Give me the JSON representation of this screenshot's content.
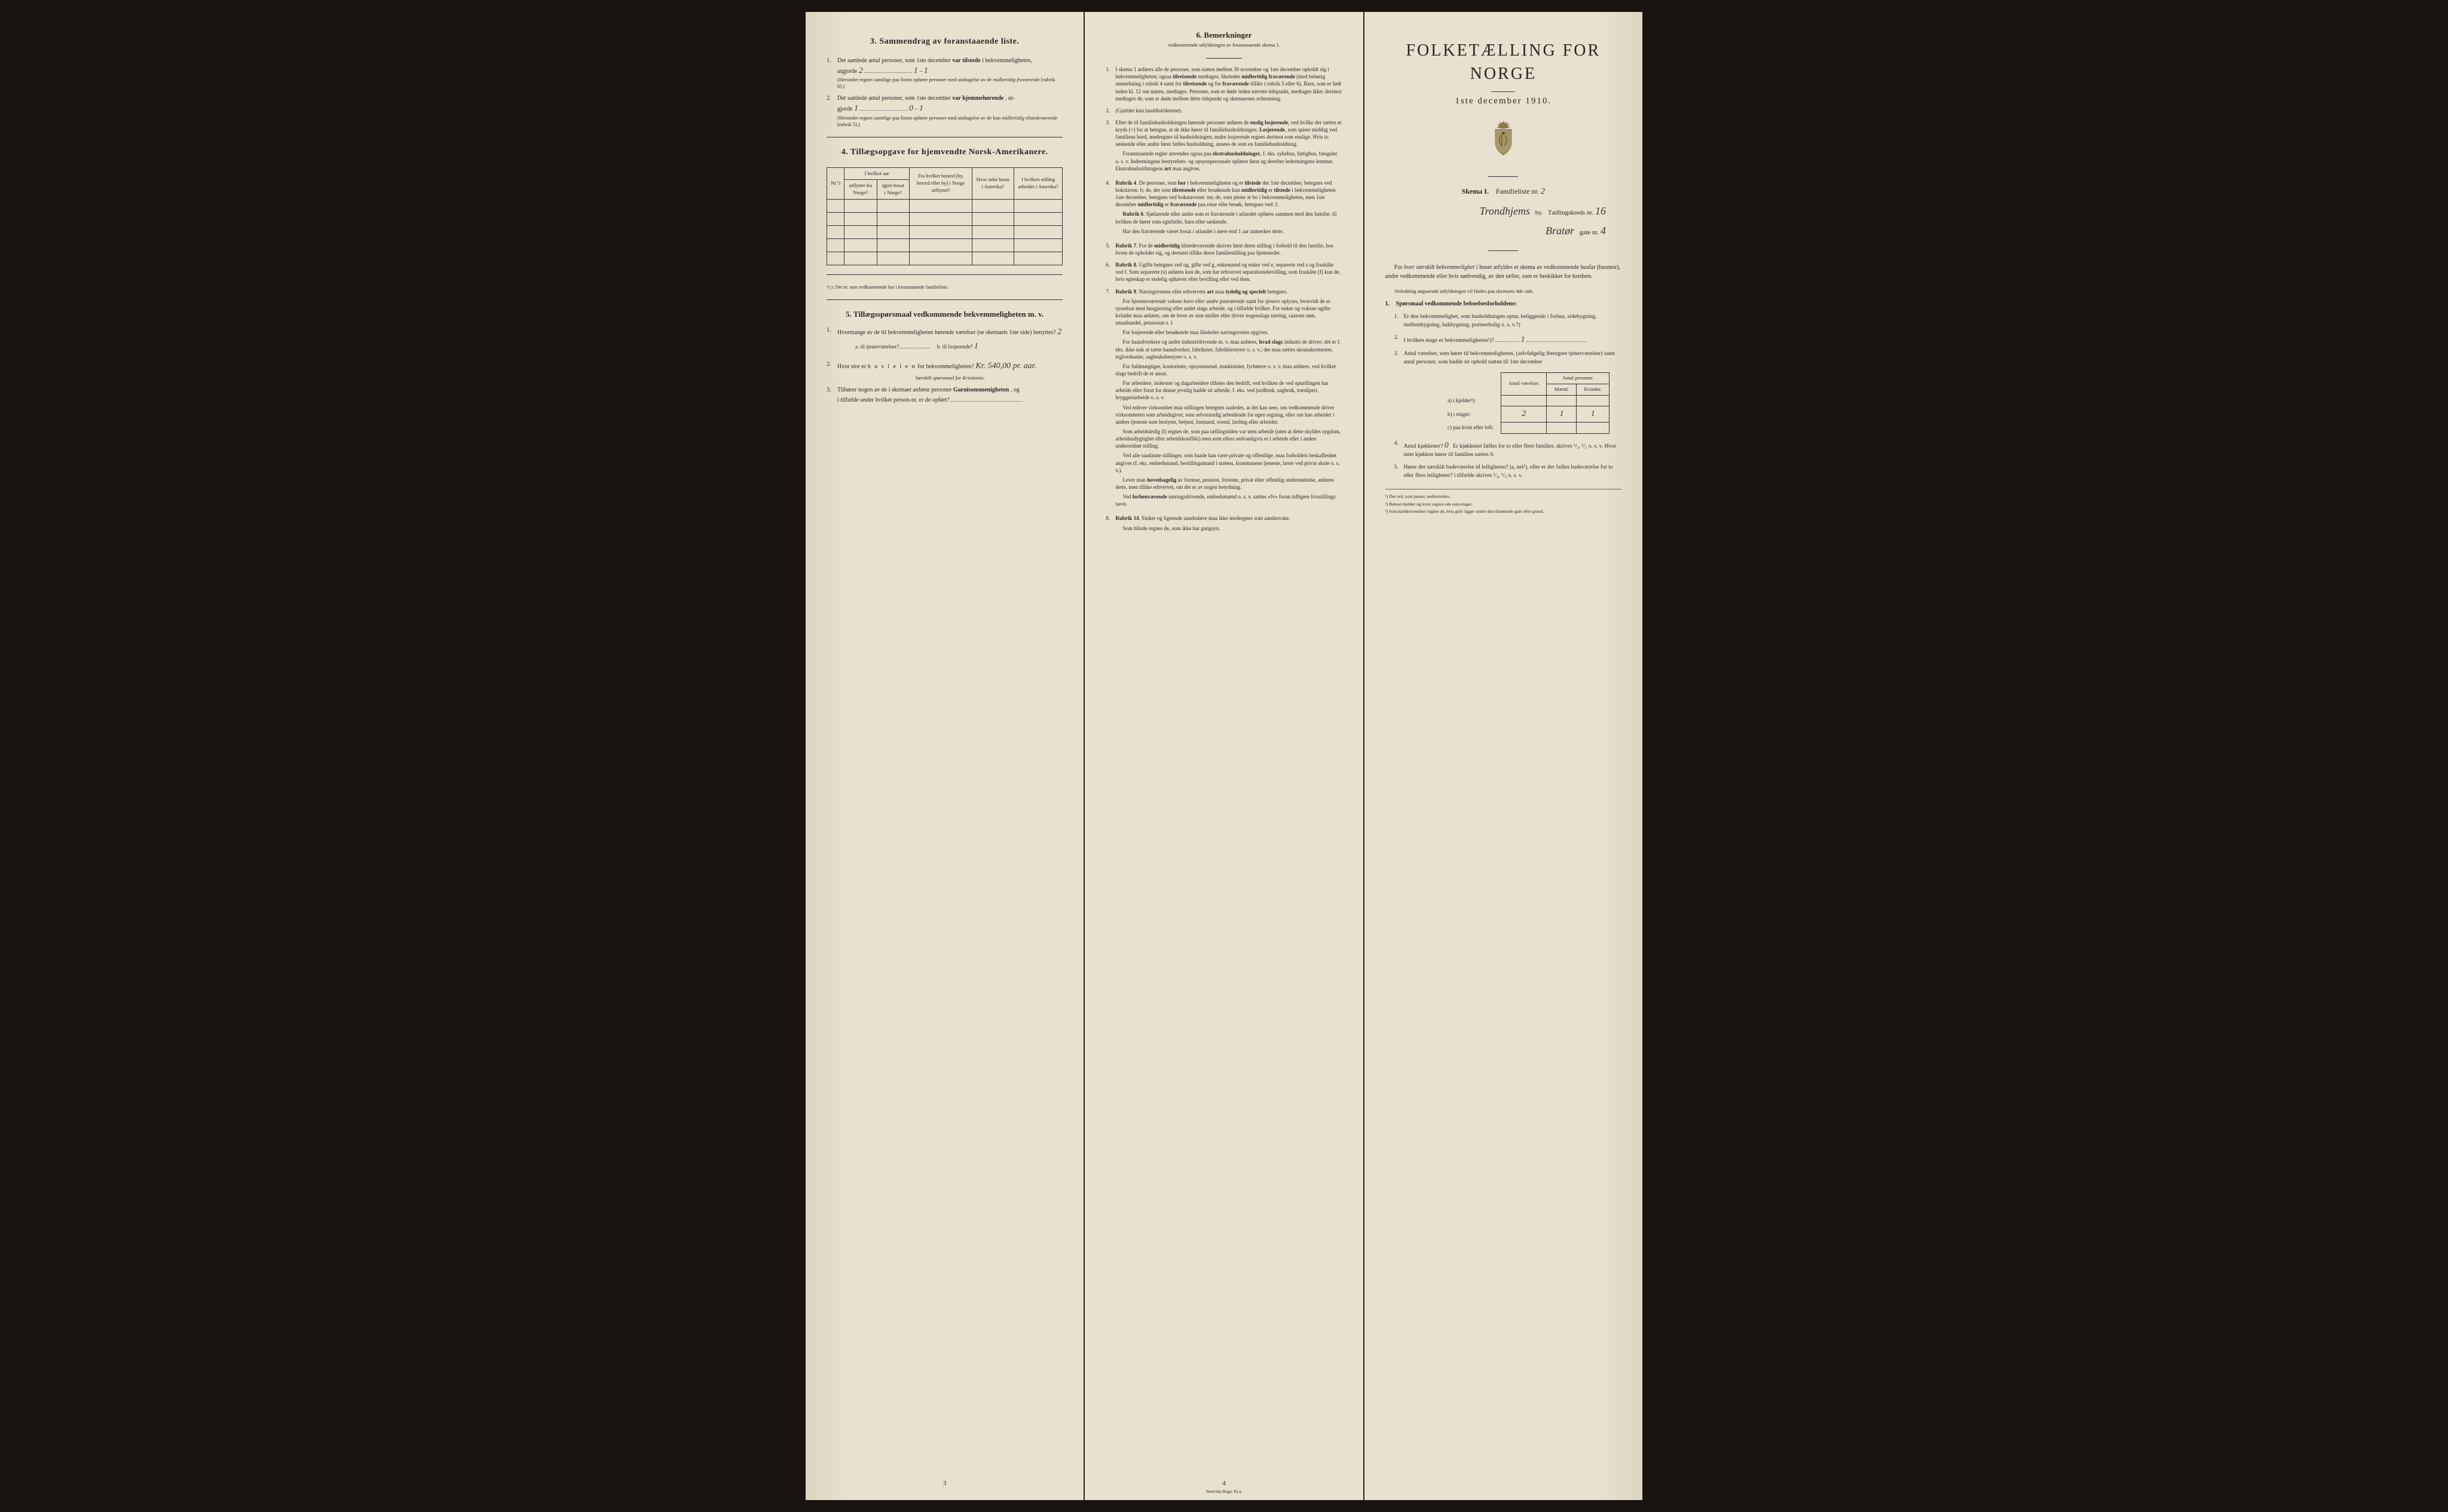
{
  "page_left": {
    "section3": {
      "title": "3.   Sammendrag av foranstaaende liste.",
      "item1": {
        "text": "Det samlede antal personer, som 1ste december",
        "bold": "var tilstede",
        "text2": "i bekvemmeligheten,",
        "line2": "utgjorde",
        "hw_total": "2",
        "hw_m": "1",
        "hw_f": "1",
        "note": "(Herunder regnes samtlige paa listen opførte personer med undtagelse av de",
        "note_italic": "midlertidig fraværende",
        "note2": "[rubrik 6].)"
      },
      "item2": {
        "text": "Det samlede antal personer, som 1ste december",
        "bold": "var hjemmehørende",
        "text2": ", ut-",
        "line2": "gjorde",
        "hw_total": "1",
        "hw_m": "0",
        "hw_f": "1",
        "note": "(Herunder regnes samtlige paa listen opførte personer med undtagelse av de kun",
        "note_italic": "midlertidig tilstedeværende",
        "note2": "[rubrik 5].)"
      }
    },
    "section4": {
      "title": "4.   Tillægsopgave for hjemvendte Norsk-Amerikanere.",
      "headers": {
        "nr": "Nr.¹)",
        "year_group": "I hvilket aar",
        "emigrated": "utflyttet fra Norge?",
        "returned": "igjen bosat i Norge?",
        "from_where": "Fra hvilket bosted (by, herred eller by) i Norge utflyttet?",
        "last_america": "Hvor sidst bosat i Amerika?",
        "occupation": "I hvilken stilling arbeidet i Amerika?"
      },
      "footnote": "¹) ɔ: Det nr. som vedkommende har i foranstaaende familieliste."
    },
    "section5": {
      "title": "5.   Tillægsspørsmaal vedkommende bekvemmeligheten m. v.",
      "item1": {
        "text": "Hvormange av de til bekvemmeligheten hørende værelser (se skemaets 1ste side) benyttes?",
        "hw": "2",
        "sub_a": "a. til tjenerværelser?",
        "sub_b": "b. til losjerende?",
        "hw_b": "1"
      },
      "item2": {
        "text": "Hvor stor er",
        "spaced": "h u s l e i e n",
        "text2": "for bekvemmeligheten?",
        "hw": "Kr. 540,00 pr. aar.",
        "note": "Særskilt spørsmaal for Kristiania:"
      },
      "item3": {
        "text": "Tilhører nogen av de i skemaet anførte personer",
        "bold": "Garnisonsmenigheten",
        "text2": ", og",
        "line2": "i tilfælde under hvilket person-nr. er de opført?"
      }
    },
    "page_num": "3"
  },
  "page_middle": {
    "title": "6.   Bemerkninger",
    "subtitle": "vedkommende utfyldningen av foranstaaende skema 1.",
    "rules": [
      {
        "n": "1.",
        "text": "I skema 1 anføres alle de personer, som natten mellem 30 november og 1ste december opholdt sig i bekvemmeligheten; ogsaa tilreisende medtages; likeledes midlertidig fraværende (med behørig anmerkning i rubrik 4 samt for tilreisende og for fraværende tillike i rubrik 5 eller 6). Barn, som er født inden kl. 12 om natten, medtages. Personer, som er døde inden nævnte tidspunkt, medtages ikke; derimot medtages de, som er døde mellem dette tidspunkt og skemaernes avhentning."
      },
      {
        "n": "2.",
        "text": "(Gjælder kun landdistrikterne)."
      },
      {
        "n": "3.",
        "text": "Efter de til familiehusholdningen hørende personer anføres de enslig losjerende, ved hvilke der sættes et kryds (×) for at betegne, at de ikke hører til familiehusholdningen. Losjerende, som spiser middag ved familiens bord, medregnes til husholdningen; andre losjerende regnes derimot som enslige. Hvis to søskende eller andre fører fælles husholdning, ansees de som en familiehusholdning.",
        "para2": "Foranstaaende regler anvendes ogsaa paa ekstrahusholdninger, f. eks. sykehus, fattighus, fængsler o. s. v. Indretningens bestyrelses- og opsynspersonale opføres først og derefter indretningens lemmer. Ekstrahusholdningens art maa angives."
      },
      {
        "n": "4.",
        "text": "Rubrik 4. De personer, som bor i bekvemmeligheten og er tilstede der 1ste december, betegnes ved bokstaven: b; de, der som tilreisende eller besøkende kun midlertidig er tilstede i bekvemmeligheten 1ste december, betegnes ved bokstaverne: mt; de, som pleier at bo i bekvemmeligheten, men 1ste december midlertidig er fraværende paa reise eller besøk, betegnes ved: f.",
        "para2": "Rubrik 6. Sjøfarende eller andre som er fraværende i utlandet opføres sammen med den familie, til hvilken de hører som egtefælle, barn eller søskende.",
        "para3": "Har den fraværende været bosat i utlandet i mere end 1 aar anmerkes dette."
      },
      {
        "n": "5.",
        "text": "Rubrik 7. For de midlertidig tilstedeværende skrives først deres stilling i forhold til den familie, hos hvem de opholder sig, og dernæst tillike deres familiestilling paa hjemstedet."
      },
      {
        "n": "6.",
        "text": "Rubrik 8. Ugifte betegnes ved ug, gifte ved g, enkemænd og enker ved e, separerte ved s og fraskilte ved f. Som separerte (s) anføres kun de, som har erhvervet separationsbevilling, som fraskilte (f) kun de, hvis egteskap er endelig ophævet efter bevilling eller ved dom."
      },
      {
        "n": "7.",
        "text": "Rubrik 9. Næringsveiens eller erhvervets art maa tydelig og specielt betegnes.",
        "para2": "For hjemmeværende voksne barn eller andre paarørende samt for tjenere oplyses, hvorvidt de er sysselsat med husgjerning eller andet slags arbeide, og i tilfælde hvilket. For enker og voksne ugifte kvinder maa anføres, om de lever av sine midler eller driver nogenslags næring, saasom søm, smaahandel, pensionat o. l.",
        "para3": "For losjerende eller besøkende maa likeledes næringsveien opgives.",
        "para4": "For haandverkere og andre industridrivende m. v. maa anføres, hvad slags industri de driver; det er f. eks. ikke nok at sætte haandverker, fabrikeier, fabrikbestyrer o. s. v.; der maa sættes skomakermester, teglverkseier, sagbruksbestyrer o. s. v.",
        "para5": "For fuldmægtiger, kontorister, opsynsmænd, maskinister, fyrbøtere o. s. v. maa anføres, ved hvilket slags bedrift de er ansat.",
        "para6": "For arbeidere, inderster og dagarbeidere tilføies den bedrift, ved hvilken de ved optællingen har arbeide eller forut for denne jevnlig hadde sit arbeide, f. eks. ved jordbruk, sagbruk, træsliperi, bryggeriarbeide o. s. v.",
        "para7": "Ved enhver virksomhet maa stillingen betegnes saaledes, at det kan sees, om vedkommende driver virksomheten som arbeidsgiver, som selvstændig arbeidende for egen regning, eller om han arbeider i andres tjeneste som bestyrer, betjent, formand, svend, lærling eller arbeider.",
        "para8": "Som arbeidsledig (l) regnes de, som paa tællingstiden var uten arbeide (uten at dette skyldes sygdom, arbeidsudygtighet eller arbeidskonflikt) men som ellers sedvanligvis er i arbeide eller i anden underordnet stilling.",
        "para9": "Ved alle saadanne stillinger, som baade kan være private og offentlige, maa forholdets beskaffenhet angives (f. eks. embedsmand, bestillingsmand i statens, kommunens tjeneste, lærer ved privat skole o. s. v.).",
        "para10": "Lever man hovedsagelig av formue, pension, livrente, privat eller offentlig understøttelse, anføres dette, men tillike erhvervet, om det er av nogen betydning.",
        "para11": "Ved forhenværende næringsdrivende, embedsmænd o. s. v. sættes «fv» foran tidligere livsstillings navn."
      },
      {
        "n": "8.",
        "text": "Rubrik 14. Sinker og lignende aandssløve maa ikke medregnes som aandssvake.",
        "para2": "Som blinde regnes de, som ikke har gangsyn."
      }
    ],
    "page_num": "4",
    "printer": "Steen'ske Bogtr.  Kr.a."
  },
  "page_right": {
    "main_title": "FOLKETÆLLING FOR NORGE",
    "date": "1ste december 1910.",
    "schema_label": "Skema I.",
    "familie_label": "Familieliste nr.",
    "familie_hw": "2",
    "by_hw": "Trondhjems",
    "by_label": "by.",
    "kreds_label": "Tællingskreds nr.",
    "kreds_hw": "16",
    "gate_hw": "Bratør",
    "gate_label": "gate nr.",
    "gate_nr_hw": "4",
    "intro": "For hver særskilt bekvemmelighet i huset utfyldes et skema av vedkommende husfar (husmor), andre vedkommende eller hvis nødvendig, av den tæller, som er beskikket for kredsen.",
    "intro_small": "Veiledning angaaende utfyldningen vil findes paa skemaets 4de side.",
    "q_header": "Spørsmaal vedkommende beboelsesforholdene:",
    "q1": "Er den bekvemmelighet, som husholdningen optar, beliggende i forhus, sidebygning, mellembygning, bakbygning, portnerbolig o. s. v.?)",
    "q2": "I hvilken etage er bekvemmeligheten²)?",
    "q2_hw": "1",
    "q3": "Antal værelser, som hører til bekvemmeligheten, (selvfølgelig iberegnet tjenerværelser) samt antal personer, som hadde sit ophold natten til 1ste december",
    "table": {
      "h1": "Antal værelser.",
      "h2": "Antal personer.",
      "h2a": "Mænd.",
      "h2b": "Kvinder.",
      "row_a": "a) i kjelder³):",
      "row_b": "b) i etager:",
      "row_c": "c) paa kvist eller loft:",
      "hw_b_rooms": "2",
      "hw_b_m": "1",
      "hw_b_f": "1"
    },
    "q4": "Antal kjøkkener?",
    "q4_hw": "0",
    "q4_text": "Er kjøkkenet fælles for to eller flere familier, skrives ¹/₂, ¹/₃ o. s. v. Hvor intet kjøkken hører til familien sættes 0.",
    "q5": "Hører der særskilt badeværelse til leiligheten? ja, nei¹), eller er der fælles badeværelse for to eller flere leiligheter? i tilfælde skrives ¹/₂, ¹/₃ o. s. v.",
    "footnotes": {
      "f1": "¹) Det ord, som passer, understrekes.",
      "f2": "²) Beboet kjelder og kvist regnes ede som etager.",
      "f3": "³) Som kjelderværelser regnes de, hvis gulv ligger under den tilstøtende gate eller grund."
    }
  },
  "colors": {
    "paper": "#e8e1d0",
    "paper_shadow": "#ddd5c0",
    "text": "#2a2520",
    "handwriting": "#3a3530",
    "background": "#1a1410"
  }
}
